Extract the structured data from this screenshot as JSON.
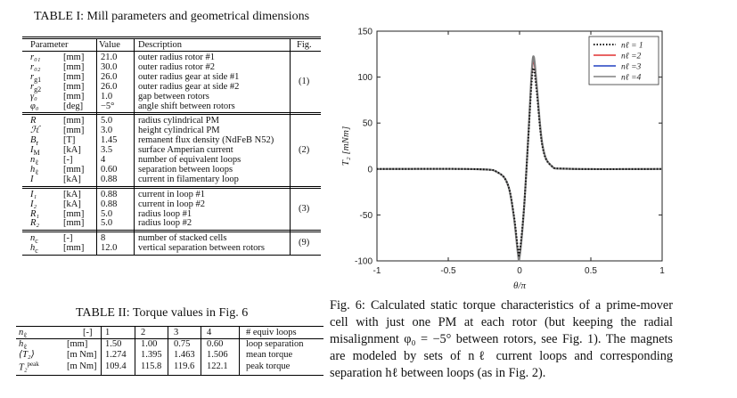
{
  "table1": {
    "caption": "TABLE I: Mill parameters and geometrical dimensions",
    "headers": [
      "Parameter",
      "Value",
      "Description",
      "Fig."
    ],
    "groups": [
      {
        "fig": "(1)",
        "rows": [
          {
            "sym": "r₀₁",
            "unit": "[mm]",
            "value": "21.0",
            "desc": "outer radius rotor #1"
          },
          {
            "sym": "r₀₂",
            "unit": "[mm]",
            "value": "30.0",
            "desc": "outer radius rotor #2"
          },
          {
            "sym": "r_g1",
            "unit": "[mm]",
            "value": "26.0",
            "desc": "outer radius gear at side #1"
          },
          {
            "sym": "r_g2",
            "unit": "[mm]",
            "value": "26.0",
            "desc": "outer radius gear at side #2"
          },
          {
            "sym": "γ₀",
            "unit": "[mm]",
            "value": "1.0",
            "desc": "gap between rotors"
          },
          {
            "sym": "φ₀",
            "unit": "[deg]",
            "value": "−5°",
            "desc": "angle shift between rotors"
          }
        ]
      },
      {
        "fig": "(2)",
        "rows": [
          {
            "sym": "R",
            "unit": "[mm]",
            "value": "5.0",
            "desc": "radius cylindrical PM"
          },
          {
            "sym": "ℋ",
            "unit": "[mm]",
            "value": "3.0",
            "desc": "height cylindrical PM"
          },
          {
            "sym": "B_r",
            "unit": "[T]",
            "value": "1.45",
            "desc": "remanent flux density (NdFeB N52)"
          },
          {
            "sym": "I_M",
            "unit": "[kA]",
            "value": "3.5",
            "desc": "surface Amperian current"
          },
          {
            "sym": "n_ℓ",
            "unit": "[-]",
            "value": "4",
            "desc": "number of equivalent loops"
          },
          {
            "sym": "h_ℓ",
            "unit": "[mm]",
            "value": "0.60",
            "desc": "separation between loops"
          },
          {
            "sym": "I",
            "unit": "[kA]",
            "value": "0.88",
            "desc": "current in filamentary loop"
          }
        ]
      },
      {
        "fig": "(3)",
        "rows": [
          {
            "sym": "I₁",
            "unit": "[kA]",
            "value": "0.88",
            "desc": "current in loop #1"
          },
          {
            "sym": "I₂",
            "unit": "[kA]",
            "value": "0.88",
            "desc": "current in loop #2"
          },
          {
            "sym": "R₁",
            "unit": "[mm]",
            "value": "5.0",
            "desc": "radius loop #1"
          },
          {
            "sym": "R₂",
            "unit": "[mm]",
            "value": "5.0",
            "desc": "radius loop #2"
          }
        ]
      },
      {
        "fig": "(9)",
        "rows": [
          {
            "sym": "n_c",
            "unit": "[-]",
            "value": "8",
            "desc": "number of stacked cells"
          },
          {
            "sym": "h_c",
            "unit": "[mm]",
            "value": "12.0",
            "desc": "vertical separation between rotors"
          }
        ]
      }
    ]
  },
  "table2": {
    "caption": "TABLE II: Torque values in Fig. 6",
    "header": {
      "sym": "n_ℓ",
      "unit": "[-]",
      "cols": [
        "1",
        "2",
        "3",
        "4"
      ],
      "desc": "# equiv loops"
    },
    "rows": [
      {
        "sym": "h_ℓ",
        "unit": "[mm]",
        "values": [
          "1.50",
          "1.00",
          "0.75",
          "0.60"
        ],
        "desc": "loop separation"
      },
      {
        "sym": "⟨T₂⟩",
        "unit": "[m Nm]",
        "values": [
          "1.274",
          "1.395",
          "1.463",
          "1.506"
        ],
        "desc": "mean torque"
      },
      {
        "sym": "T₂^peak",
        "unit": "[m Nm]",
        "values": [
          "109.4",
          "115.8",
          "119.6",
          "122.1"
        ],
        "desc": "peak torque"
      }
    ]
  },
  "figure": {
    "caption": "Fig. 6: Calculated static torque characteristics of a prime-mover cell with just one PM at each rotor (but keeping the radial misalignment φ₀ = −5° between rotors, see Fig. 1). The magnets are modeled by sets of nℓ current loops and corresponding separation hℓ between loops (as in Fig. 2)."
  },
  "chart_data": {
    "type": "line",
    "xlabel": "θ/π",
    "ylabel": "T₂ [mNm]",
    "xlim": [
      -1,
      1
    ],
    "ylim": [
      -100,
      150
    ],
    "xticks": [
      "-1",
      "-0.5",
      "0",
      "0.5",
      "1"
    ],
    "yticks": [
      "150",
      "100",
      "50",
      "0",
      "-50",
      "-100"
    ],
    "legend_position": "top-right",
    "series": [
      {
        "name": "nℓ = 1",
        "color": "#111111",
        "dash": "dotted",
        "x": [
          -1,
          -0.3,
          -0.15,
          -0.08,
          -0.04,
          -0.012,
          0.0,
          0.03,
          0.06,
          0.085,
          0.1,
          0.12,
          0.16,
          0.22,
          0.35,
          1
        ],
        "y": [
          0,
          -0.2,
          -4,
          -18,
          -50,
          -86,
          -91,
          -45,
          30,
          95,
          109.4,
          85,
          25,
          4,
          0.2,
          0
        ]
      },
      {
        "name": "nℓ =2",
        "color": "#e03030",
        "dash": "solid",
        "x": [
          -1,
          -0.3,
          -0.15,
          -0.08,
          -0.04,
          -0.012,
          0.0,
          0.03,
          0.06,
          0.085,
          0.1,
          0.12,
          0.16,
          0.22,
          0.35,
          1
        ],
        "y": [
          0,
          -0.2,
          -4,
          -18,
          -51,
          -89,
          -94,
          -46,
          31,
          100,
          115.8,
          89,
          26,
          4,
          0.2,
          0
        ]
      },
      {
        "name": "nℓ =3",
        "color": "#2040c0",
        "dash": "solid",
        "x": [
          -1,
          -0.3,
          -0.15,
          -0.08,
          -0.04,
          -0.012,
          0.0,
          0.03,
          0.06,
          0.085,
          0.1,
          0.12,
          0.16,
          0.22,
          0.35,
          1
        ],
        "y": [
          0,
          -0.2,
          -4,
          -18,
          -52,
          -90,
          -95,
          -46,
          32,
          103,
          119.6,
          91,
          26,
          4,
          0.2,
          0
        ]
      },
      {
        "name": "nℓ =4",
        "color": "#808080",
        "dash": "solid",
        "x": [
          -1,
          -0.3,
          -0.15,
          -0.08,
          -0.04,
          -0.012,
          0.0,
          0.03,
          0.06,
          0.085,
          0.1,
          0.12,
          0.16,
          0.22,
          0.35,
          1
        ],
        "y": [
          0,
          -0.2,
          -4,
          -18,
          -52,
          -91,
          -96,
          -46,
          32,
          105,
          122.1,
          92,
          27,
          4,
          0.2,
          0
        ]
      }
    ]
  }
}
